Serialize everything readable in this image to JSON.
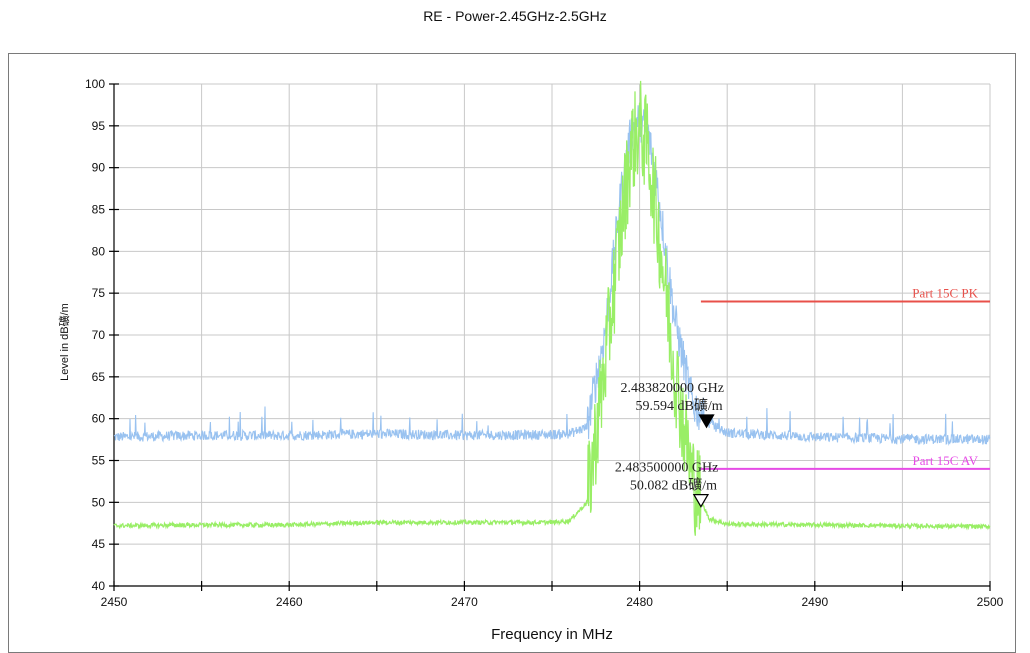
{
  "chart_data": {
    "type": "line",
    "title": "RE - Power-2.45GHz-2.5GHz",
    "xlabel": "Frequency in MHz",
    "ylabel": "Level in dB礦/m",
    "xlim": [
      2450,
      2500
    ],
    "ylim": [
      40,
      100
    ],
    "x_ticks": [
      "2450",
      "2460",
      "2470",
      "2480",
      "2490",
      "2500"
    ],
    "y_ticks": [
      "40",
      "45",
      "50",
      "55",
      "60",
      "65",
      "70",
      "75",
      "80",
      "85",
      "90",
      "95",
      "100"
    ],
    "grid": true,
    "series": [
      {
        "color": "#99c2f0",
        "peak_x": 2480.0,
        "peak_y": 95.8,
        "noise_floor": 58.0,
        "points": [
          [
            2450,
            57.8
          ],
          [
            2455,
            58.0
          ],
          [
            2460,
            58.0
          ],
          [
            2465,
            58.2
          ],
          [
            2470,
            58.0
          ],
          [
            2475,
            58.1
          ],
          [
            2476,
            58.2
          ],
          [
            2477,
            59.0
          ],
          [
            2478,
            70.0
          ],
          [
            2479,
            88.0
          ],
          [
            2479.5,
            94.0
          ],
          [
            2480,
            95.8
          ],
          [
            2480.5,
            94.0
          ],
          [
            2481,
            88.0
          ],
          [
            2482,
            72.0
          ],
          [
            2483,
            62.0
          ],
          [
            2483.82,
            59.6
          ],
          [
            2485,
            58.3
          ],
          [
            2490,
            57.8
          ],
          [
            2495,
            57.6
          ],
          [
            2500,
            57.5
          ]
        ]
      },
      {
        "color": "#99ee66",
        "peak_x": 2480.0,
        "peak_y": 95.0,
        "noise_floor": 47.3,
        "points": [
          [
            2450,
            47.2
          ],
          [
            2455,
            47.3
          ],
          [
            2460,
            47.3
          ],
          [
            2465,
            47.6
          ],
          [
            2470,
            47.6
          ],
          [
            2475,
            47.6
          ],
          [
            2476,
            47.8
          ],
          [
            2477,
            50.0
          ],
          [
            2478,
            66.0
          ],
          [
            2479,
            84.0
          ],
          [
            2479.5,
            92.0
          ],
          [
            2480,
            95.0
          ],
          [
            2480.5,
            92.0
          ],
          [
            2481,
            84.0
          ],
          [
            2482,
            66.0
          ],
          [
            2483,
            53.0
          ],
          [
            2483.5,
            50.1
          ],
          [
            2484,
            48.0
          ],
          [
            2485,
            47.4
          ],
          [
            2490,
            47.3
          ],
          [
            2495,
            47.2
          ],
          [
            2500,
            47.1
          ]
        ]
      }
    ],
    "limit_lines": [
      {
        "label": "Part 15C PK",
        "value": 74,
        "x_start": 2483.5,
        "x_end": 2500,
        "color": "#e8504a"
      },
      {
        "label": "Part 15C  AV",
        "value": 54,
        "x_start": 2483.5,
        "x_end": 2500,
        "color": "#e64ce6"
      }
    ],
    "markers": [
      {
        "freq_text": "2.483820000  GHz",
        "level_text": "59.594  dB礦/m",
        "x": 2483.82,
        "y": 59.594,
        "style": "filled"
      },
      {
        "freq_text": "2.483500000  GHz",
        "level_text": "50.082  dB礦/m",
        "x": 2483.5,
        "y": 50.082,
        "style": "hollow"
      }
    ]
  }
}
